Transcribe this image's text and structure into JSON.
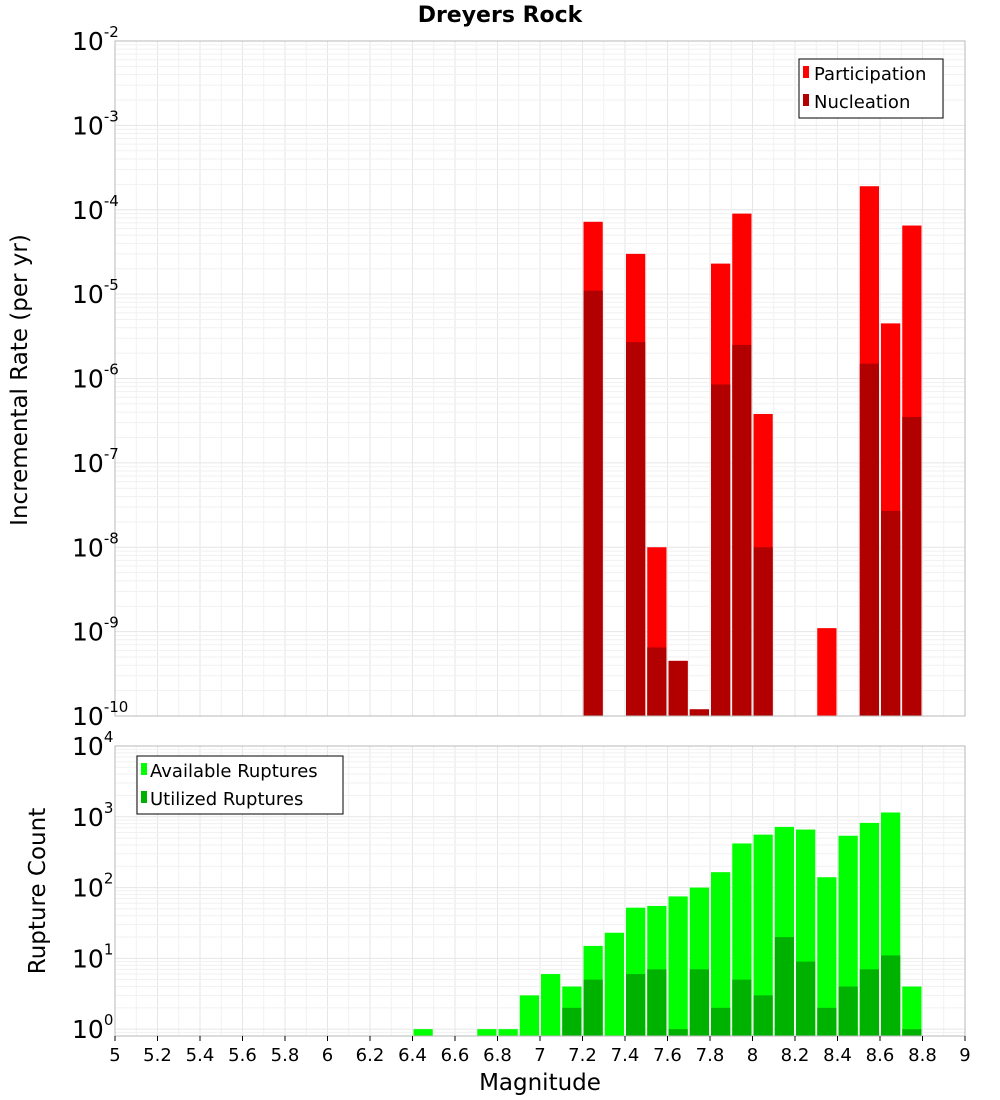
{
  "colors": {
    "participation": "#ff0000",
    "nucleation": "#b20000",
    "available": "#00ff00",
    "utilized": "#00b200",
    "background": "#ffffff"
  },
  "chart_data": [
    {
      "type": "bar",
      "title": "Dreyers Rock",
      "xlabel": "",
      "ylabel": "Incremental Rate (per yr)",
      "xlim": [
        5,
        9
      ],
      "ylim": [
        1e-10,
        0.01
      ],
      "yscale": "log",
      "y_ticks": [
        {
          "base": "10",
          "exp": "-10"
        },
        {
          "base": "10",
          "exp": "-9"
        },
        {
          "base": "10",
          "exp": "-8"
        },
        {
          "base": "10",
          "exp": "-7"
        },
        {
          "base": "10",
          "exp": "-6"
        },
        {
          "base": "10",
          "exp": "-5"
        },
        {
          "base": "10",
          "exp": "-4"
        },
        {
          "base": "10",
          "exp": "-3"
        },
        {
          "base": "10",
          "exp": "-2"
        }
      ],
      "grid": true,
      "legend_position": "top-right",
      "series": [
        {
          "name": "Participation",
          "color": "#ff0000",
          "points": [
            {
              "x": 7.25,
              "y": 7.2e-05
            },
            {
              "x": 7.45,
              "y": 3e-05
            },
            {
              "x": 7.55,
              "y": 1e-08
            },
            {
              "x": 7.65,
              "y": 4.5e-10
            },
            {
              "x": 7.75,
              "y": 1.2e-10
            },
            {
              "x": 7.85,
              "y": 2.3e-05
            },
            {
              "x": 7.95,
              "y": 9e-05
            },
            {
              "x": 8.05,
              "y": 3.8e-07
            },
            {
              "x": 8.35,
              "y": 1.1e-09
            },
            {
              "x": 8.55,
              "y": 0.00019
            },
            {
              "x": 8.65,
              "y": 4.5e-06
            },
            {
              "x": 8.75,
              "y": 6.5e-05
            }
          ]
        },
        {
          "name": "Nucleation",
          "color": "#b20000",
          "points": [
            {
              "x": 7.25,
              "y": 1.1e-05
            },
            {
              "x": 7.45,
              "y": 2.7e-06
            },
            {
              "x": 7.55,
              "y": 6.5e-10
            },
            {
              "x": 7.65,
              "y": 4.5e-10
            },
            {
              "x": 7.75,
              "y": 1.2e-10
            },
            {
              "x": 7.85,
              "y": 8.5e-07
            },
            {
              "x": 7.95,
              "y": 2.5e-06
            },
            {
              "x": 8.05,
              "y": 1e-08
            },
            {
              "x": 8.55,
              "y": 1.5e-06
            },
            {
              "x": 8.65,
              "y": 2.7e-08
            },
            {
              "x": 8.75,
              "y": 3.5e-07
            }
          ]
        }
      ]
    },
    {
      "type": "bar",
      "title": "",
      "xlabel": "Magnitude",
      "ylabel": "Rupture Count",
      "xlim": [
        5,
        9
      ],
      "ylim": [
        0.8,
        10000.0
      ],
      "yscale": "log",
      "x_ticks": [
        "5",
        "5.2",
        "5.4",
        "5.6",
        "5.8",
        "6",
        "6.2",
        "6.4",
        "6.6",
        "6.8",
        "7",
        "7.2",
        "7.4",
        "7.6",
        "7.8",
        "8",
        "8.2",
        "8.4",
        "8.6",
        "8.8",
        "9"
      ],
      "y_ticks": [
        {
          "base": "10",
          "exp": "0"
        },
        {
          "base": "10",
          "exp": "1"
        },
        {
          "base": "10",
          "exp": "2"
        },
        {
          "base": "10",
          "exp": "3"
        },
        {
          "base": "10",
          "exp": "4"
        }
      ],
      "grid": true,
      "legend_position": "top-left",
      "series": [
        {
          "name": "Available Ruptures",
          "color": "#00ff00",
          "points": [
            {
              "x": 6.45,
              "y": 1
            },
            {
              "x": 6.75,
              "y": 1
            },
            {
              "x": 6.85,
              "y": 1
            },
            {
              "x": 6.95,
              "y": 3
            },
            {
              "x": 7.05,
              "y": 6
            },
            {
              "x": 7.15,
              "y": 4
            },
            {
              "x": 7.25,
              "y": 15
            },
            {
              "x": 7.35,
              "y": 23
            },
            {
              "x": 7.45,
              "y": 52
            },
            {
              "x": 7.55,
              "y": 55
            },
            {
              "x": 7.65,
              "y": 75
            },
            {
              "x": 7.75,
              "y": 100
            },
            {
              "x": 7.85,
              "y": 165
            },
            {
              "x": 7.95,
              "y": 420
            },
            {
              "x": 8.05,
              "y": 560
            },
            {
              "x": 8.15,
              "y": 720
            },
            {
              "x": 8.25,
              "y": 660
            },
            {
              "x": 8.35,
              "y": 140
            },
            {
              "x": 8.45,
              "y": 540
            },
            {
              "x": 8.55,
              "y": 820
            },
            {
              "x": 8.65,
              "y": 1150
            },
            {
              "x": 8.75,
              "y": 4
            }
          ]
        },
        {
          "name": "Utilized Ruptures",
          "color": "#00b200",
          "points": [
            {
              "x": 7.15,
              "y": 2
            },
            {
              "x": 7.25,
              "y": 5
            },
            {
              "x": 7.45,
              "y": 6
            },
            {
              "x": 7.55,
              "y": 7
            },
            {
              "x": 7.65,
              "y": 1
            },
            {
              "x": 7.75,
              "y": 7
            },
            {
              "x": 7.85,
              "y": 2
            },
            {
              "x": 7.95,
              "y": 5
            },
            {
              "x": 8.05,
              "y": 3
            },
            {
              "x": 8.15,
              "y": 20
            },
            {
              "x": 8.25,
              "y": 9
            },
            {
              "x": 8.35,
              "y": 2
            },
            {
              "x": 8.45,
              "y": 4
            },
            {
              "x": 8.55,
              "y": 7
            },
            {
              "x": 8.65,
              "y": 11
            },
            {
              "x": 8.75,
              "y": 1
            }
          ]
        }
      ]
    }
  ]
}
